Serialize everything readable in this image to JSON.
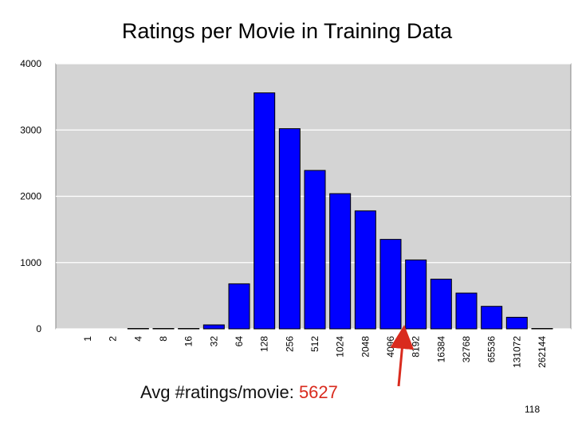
{
  "slide": {
    "title": "Ratings per Movie in Training Data",
    "note_label": "Avg #ratings/movie:",
    "note_value": "5627",
    "page_number": "118"
  },
  "colors": {
    "bar": "#0000ff",
    "plot_background": "#d4d4d4",
    "arrow": "#d92b1e"
  },
  "chart_data": {
    "type": "bar",
    "title": "Ratings per Movie in Training Data",
    "xlabel": "",
    "ylabel": "",
    "categories": [
      "1",
      "2",
      "4",
      "8",
      "16",
      "32",
      "64",
      "128",
      "256",
      "512",
      "1024",
      "2048",
      "4096",
      "8192",
      "16384",
      "32768",
      "65536",
      "131072",
      "262144"
    ],
    "values": [
      0,
      0,
      6,
      6,
      6,
      60,
      680,
      3560,
      3020,
      2390,
      2040,
      1780,
      1350,
      1040,
      750,
      540,
      340,
      175,
      6
    ],
    "ylim": [
      0,
      4000
    ],
    "yticks": [
      0,
      1000,
      2000,
      3000,
      4000
    ],
    "grid": true,
    "legend": "none",
    "annotation": {
      "text": "Avg #ratings/movie: 5627",
      "points_to_category": "4096"
    }
  }
}
